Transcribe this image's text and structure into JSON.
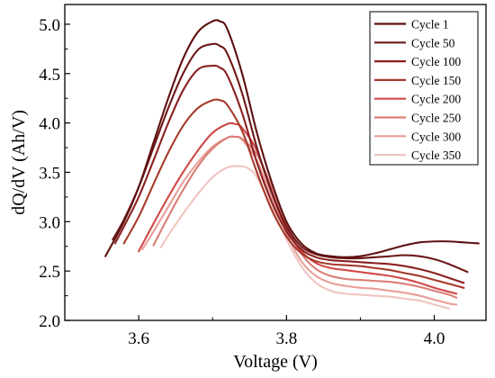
{
  "chart_data": {
    "type": "line",
    "xlabel": "Voltage (V)",
    "ylabel": "dQ/dV (Ah/V)",
    "xlim": [
      3.5,
      4.07
    ],
    "ylim": [
      2.0,
      5.2
    ],
    "x_ticks": [
      3.6,
      3.8,
      4.0
    ],
    "x_tick_labels": [
      "3.6",
      "3.8",
      "4.0"
    ],
    "y_ticks": [
      2.0,
      2.5,
      3.0,
      3.5,
      4.0,
      4.5,
      5.0
    ],
    "y_tick_labels": [
      "2.0",
      "2.5",
      "3.0",
      "3.5",
      "4.0",
      "4.5",
      "5.0"
    ],
    "grid": false,
    "legend_position": "top-right",
    "series": [
      {
        "name": "Cycle 1",
        "color": "#5e1010",
        "x": [
          3.555,
          3.58,
          3.6,
          3.62,
          3.64,
          3.66,
          3.68,
          3.7,
          3.71,
          3.72,
          3.74,
          3.76,
          3.78,
          3.8,
          3.82,
          3.84,
          3.86,
          3.88,
          3.9,
          3.92,
          3.94,
          3.96,
          3.98,
          4.0,
          4.02,
          4.04,
          4.06
        ],
        "y": [
          2.65,
          3.0,
          3.35,
          3.8,
          4.25,
          4.65,
          4.92,
          5.03,
          5.03,
          4.95,
          4.5,
          3.9,
          3.4,
          3.0,
          2.78,
          2.68,
          2.65,
          2.64,
          2.65,
          2.68,
          2.72,
          2.76,
          2.79,
          2.8,
          2.8,
          2.79,
          2.78
        ]
      },
      {
        "name": "Cycle 50",
        "color": "#6e1818",
        "x": [
          3.565,
          3.58,
          3.6,
          3.62,
          3.64,
          3.66,
          3.68,
          3.7,
          3.71,
          3.72,
          3.74,
          3.76,
          3.78,
          3.8,
          3.82,
          3.84,
          3.86,
          3.88,
          3.9,
          3.92,
          3.94,
          3.96,
          3.98,
          4.0,
          4.02,
          4.045
        ],
        "y": [
          2.82,
          3.02,
          3.35,
          3.75,
          4.15,
          4.5,
          4.74,
          4.8,
          4.78,
          4.7,
          4.3,
          3.75,
          3.3,
          2.95,
          2.75,
          2.67,
          2.64,
          2.63,
          2.63,
          2.64,
          2.65,
          2.66,
          2.65,
          2.62,
          2.57,
          2.49
        ]
      },
      {
        "name": "Cycle 100",
        "color": "#8a2020",
        "x": [
          3.568,
          3.58,
          3.6,
          3.62,
          3.64,
          3.66,
          3.68,
          3.7,
          3.71,
          3.72,
          3.74,
          3.76,
          3.78,
          3.8,
          3.82,
          3.84,
          3.86,
          3.88,
          3.9,
          3.92,
          3.94,
          3.96,
          3.98,
          4.0,
          4.02,
          4.04
        ],
        "y": [
          2.78,
          2.95,
          3.25,
          3.62,
          4.0,
          4.33,
          4.54,
          4.58,
          4.56,
          4.48,
          4.1,
          3.6,
          3.2,
          2.9,
          2.72,
          2.64,
          2.61,
          2.6,
          2.59,
          2.58,
          2.57,
          2.55,
          2.52,
          2.48,
          2.43,
          2.38
        ]
      },
      {
        "name": "Cycle 150",
        "color": "#a53a2a",
        "x": [
          3.58,
          3.6,
          3.62,
          3.64,
          3.66,
          3.68,
          3.7,
          3.71,
          3.72,
          3.74,
          3.76,
          3.78,
          3.8,
          3.82,
          3.84,
          3.86,
          3.88,
          3.9,
          3.92,
          3.94,
          3.96,
          3.98,
          4.0,
          4.02,
          4.04
        ],
        "y": [
          2.78,
          3.05,
          3.38,
          3.7,
          3.97,
          4.15,
          4.23,
          4.23,
          4.18,
          3.92,
          3.5,
          3.12,
          2.85,
          2.68,
          2.6,
          2.57,
          2.56,
          2.55,
          2.53,
          2.51,
          2.48,
          2.45,
          2.41,
          2.37,
          2.33
        ]
      },
      {
        "name": "Cycle 200",
        "color": "#d04848",
        "x": [
          3.6,
          3.62,
          3.64,
          3.66,
          3.68,
          3.7,
          3.72,
          3.73,
          3.74,
          3.76,
          3.78,
          3.8,
          3.82,
          3.84,
          3.86,
          3.88,
          3.9,
          3.92,
          3.94,
          3.96,
          3.98,
          4.0,
          4.02,
          4.03
        ],
        "y": [
          2.7,
          2.98,
          3.25,
          3.5,
          3.72,
          3.9,
          3.99,
          3.99,
          3.95,
          3.72,
          3.3,
          2.92,
          2.7,
          2.58,
          2.53,
          2.51,
          2.49,
          2.47,
          2.45,
          2.42,
          2.38,
          2.33,
          2.29,
          2.27
        ]
      },
      {
        "name": "Cycle 250",
        "color": "#d97f76",
        "x": [
          3.62,
          3.64,
          3.66,
          3.68,
          3.7,
          3.72,
          3.73,
          3.74,
          3.76,
          3.78,
          3.8,
          3.82,
          3.84,
          3.86,
          3.88,
          3.9,
          3.92,
          3.94,
          3.96,
          3.98,
          4.0,
          4.02,
          4.03
        ],
        "y": [
          2.76,
          3.05,
          3.32,
          3.56,
          3.74,
          3.85,
          3.86,
          3.84,
          3.68,
          3.35,
          2.98,
          2.68,
          2.52,
          2.45,
          2.42,
          2.41,
          2.4,
          2.39,
          2.37,
          2.34,
          2.3,
          2.26,
          2.23
        ]
      },
      {
        "name": "Cycle 300",
        "color": "#e89e98",
        "x": [
          3.605,
          3.62,
          3.64,
          3.66,
          3.68,
          3.7,
          3.72,
          3.73,
          3.74,
          3.76,
          3.78,
          3.8,
          3.82,
          3.84,
          3.86,
          3.88,
          3.9,
          3.92,
          3.94,
          3.96,
          3.98,
          4.0,
          4.02,
          4.03
        ],
        "y": [
          2.72,
          2.9,
          3.15,
          3.4,
          3.6,
          3.76,
          3.85,
          3.86,
          3.83,
          3.62,
          3.25,
          2.88,
          2.6,
          2.45,
          2.38,
          2.35,
          2.33,
          2.32,
          2.3,
          2.28,
          2.25,
          2.21,
          2.17,
          2.16
        ]
      },
      {
        "name": "Cycle 350",
        "color": "#f0c4bf",
        "x": [
          3.63,
          3.64,
          3.66,
          3.68,
          3.7,
          3.72,
          3.74,
          3.75,
          3.76,
          3.78,
          3.8,
          3.82,
          3.84,
          3.86,
          3.88,
          3.9,
          3.92,
          3.94,
          3.96,
          3.98,
          4.0,
          4.02
        ],
        "y": [
          2.74,
          2.86,
          3.08,
          3.28,
          3.45,
          3.55,
          3.56,
          3.53,
          3.45,
          3.15,
          2.82,
          2.55,
          2.38,
          2.3,
          2.27,
          2.26,
          2.25,
          2.24,
          2.22,
          2.2,
          2.16,
          2.12
        ]
      }
    ]
  }
}
